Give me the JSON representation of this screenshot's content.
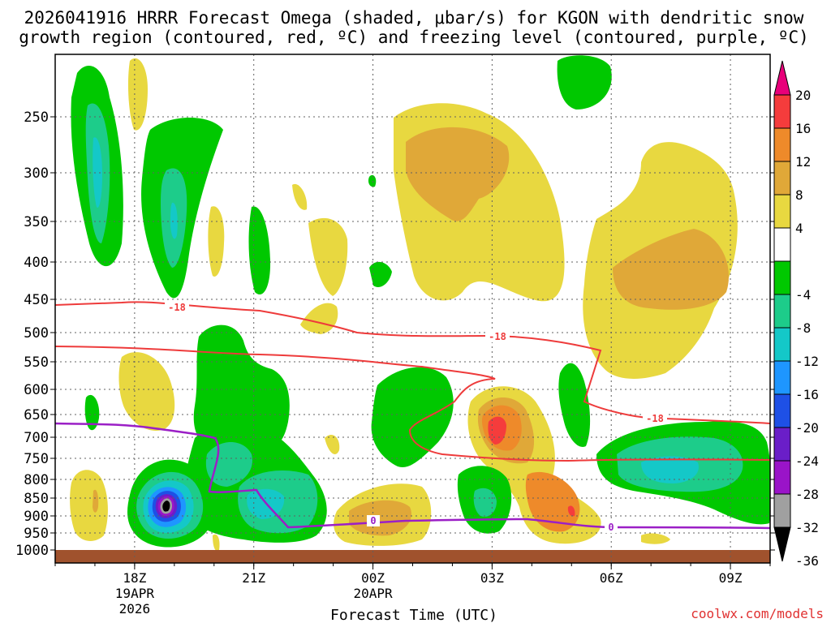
{
  "chart_data": {
    "type": "heatmap",
    "title_line1": "2026041916 HRRR Forecast Omega (shaded, μbar/s) for KGON with dendritic snow",
    "title_line2": "growth region (contoured, red, ºC) and freezing level (contoured, purple, ºC)",
    "xlabel": "Forecast Time (UTC)",
    "ylabel": "",
    "y_ticks": [
      250,
      300,
      350,
      400,
      450,
      500,
      550,
      600,
      650,
      700,
      750,
      800,
      850,
      900,
      950,
      1000
    ],
    "x_ticks": [
      {
        "label": "18Z",
        "sub1": "19APR",
        "sub2": "2026"
      },
      {
        "label": "21Z",
        "sub1": "",
        "sub2": ""
      },
      {
        "label": "00Z",
        "sub1": "20APR",
        "sub2": ""
      },
      {
        "label": "03Z",
        "sub1": "",
        "sub2": ""
      },
      {
        "label": "06Z",
        "sub1": "",
        "sub2": ""
      },
      {
        "label": "09Z",
        "sub1": "",
        "sub2": ""
      }
    ],
    "x_hours": [
      0,
      3,
      6,
      9,
      12,
      15
    ],
    "x_range_hours": [
      -2,
      16
    ],
    "colorbar": {
      "labels": [
        "20",
        "16",
        "12",
        "8",
        "4",
        "-4",
        "-8",
        "-12",
        "-16",
        "-20",
        "-24",
        "-28",
        "-32",
        "-36"
      ],
      "colors": [
        "#e8007a",
        "#f53c3c",
        "#ee8a2a",
        "#e0a838",
        "#e8d840",
        "#ffffff",
        "#00c800",
        "#1dcc8a",
        "#14c8c8",
        "#1e96ff",
        "#1e50e6",
        "#6a1ec8",
        "#9a14c8",
        "#a0a0a0",
        "#000000"
      ]
    },
    "contours": [
      {
        "name": "dendritic snow growth region",
        "color": "#ee3b3b",
        "value": "-18",
        "units": "ºC"
      },
      {
        "name": "freezing level",
        "color": "#9b1fc6",
        "value": "0",
        "units": "ºC"
      }
    ],
    "contour_labels": {
      "dgz": "-18",
      "frz": "0"
    },
    "credit": "coolwx.com/models"
  }
}
